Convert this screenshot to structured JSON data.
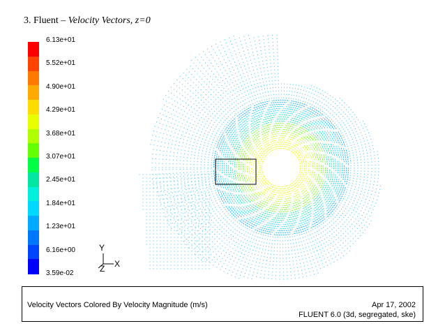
{
  "title": {
    "prefix": "3. Fluent – ",
    "italic": "Velocity Vectors, z=0"
  },
  "legend": {
    "labels": [
      "6.13e+01",
      "5.52e+01",
      "4.90e+01",
      "4.29e+01",
      "3.68e+01",
      "3.07e+01",
      "2.45e+01",
      "1.84e+01",
      "1.23e+01",
      "6.16e+00",
      "3.59e-02"
    ],
    "colors": [
      "#ff0000",
      "#ff4400",
      "#ff7a00",
      "#ffaa00",
      "#ffdd00",
      "#e8ff00",
      "#b0ff00",
      "#66ff00",
      "#00ff44",
      "#00e6a0",
      "#00f0dd",
      "#00d8ff",
      "#00aaff",
      "#0077ff",
      "#0044ff",
      "#0000ff"
    ]
  },
  "axes": {
    "y_label": "Y",
    "x_label": "X",
    "z_label": "Z"
  },
  "caption": {
    "description": "Velocity Vectors Colored By Velocity Magnitude (m/s)",
    "date": "Apr 17, 2002",
    "version": "FLUENT 6.0 (3d, segregated, ske)"
  }
}
